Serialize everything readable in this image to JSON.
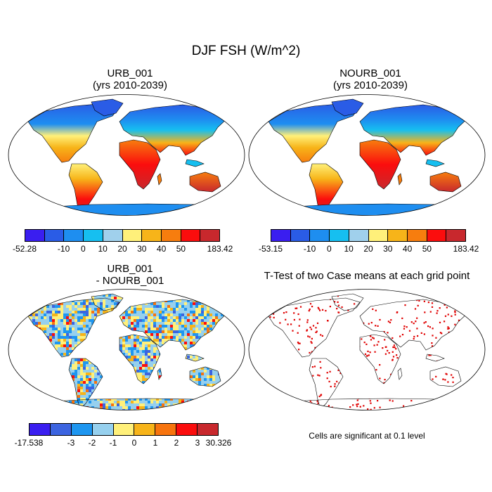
{
  "title": "DJF FSH (W/m^2)",
  "panels": [
    {
      "title_line1": "URB_001",
      "title_line2": "(yrs 2010-2039)",
      "colorbar": {
        "labels": [
          "-52.28",
          "-10",
          "0",
          "10",
          "20",
          "30",
          "40",
          "50",
          "183.42"
        ],
        "colors": [
          "#3a1ef0",
          "#2a5ce6",
          "#1e8ef0",
          "#16bff0",
          "#a0d0ec",
          "#fff07a",
          "#f7b419",
          "#f77d0e",
          "#fb0d0d",
          "#c8282d"
        ]
      }
    },
    {
      "title_line1": "NOURB_001",
      "title_line2": "(yrs 2010-2039)",
      "colorbar": {
        "labels": [
          "-53.15",
          "-10",
          "0",
          "10",
          "20",
          "30",
          "40",
          "50",
          "183.42"
        ],
        "colors": [
          "#3a1ef0",
          "#2a5ce6",
          "#1e8ef0",
          "#16bff0",
          "#a0d0ec",
          "#fff07a",
          "#f7b419",
          "#f77d0e",
          "#fb0d0d",
          "#c8282d"
        ]
      }
    },
    {
      "title_line1": "URB_001",
      "title_line2": "- NOURB_001",
      "colorbar": {
        "labels": [
          "-17.538",
          "-3",
          "-2",
          "-1",
          "0",
          "1",
          "2",
          "3",
          "30.326"
        ],
        "colors": [
          "#3a1ef0",
          "#3c64e0",
          "#1e96f0",
          "#96d0ee",
          "#fff07a",
          "#f7b419",
          "#f7740e",
          "#fb0d0d",
          "#c8282d"
        ]
      }
    },
    {
      "title_line1": "T-Test of two Case means at each grid point",
      "note": "Cells are significant at 0.1 level",
      "significance_color": "#e00000"
    }
  ]
}
